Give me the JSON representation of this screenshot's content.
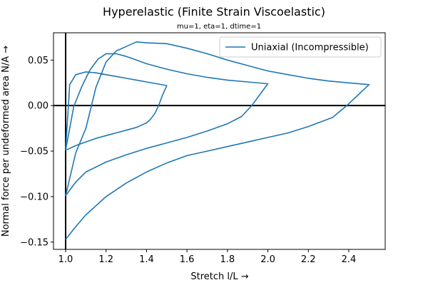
{
  "chart_data": {
    "type": "line",
    "title": "Hyperelastic (Finite Strain Viscoelastic)",
    "subtitle": "mu=1, eta=1, dtime=1",
    "xlabel": "Stretch l/L  →",
    "ylabel": "Normal force per undeformed area N/A  →",
    "xlim": [
      0.94,
      2.58
    ],
    "ylim": [
      -0.158,
      0.08
    ],
    "xticks": [
      1.0,
      1.2,
      1.4,
      1.6,
      1.8,
      2.0,
      2.2,
      2.4
    ],
    "xtick_labels": [
      "1.0",
      "1.2",
      "1.4",
      "1.6",
      "1.8",
      "2.0",
      "2.2",
      "2.4"
    ],
    "yticks": [
      0.05,
      0.0,
      -0.05,
      -0.1,
      -0.15
    ],
    "ytick_labels": [
      "0.05",
      "0.00",
      "−0.05",
      "−0.10",
      "−0.15"
    ],
    "grid": false,
    "reference_lines": {
      "x": 1.0,
      "y": 0.0
    },
    "legend": {
      "location": "upper right"
    },
    "colors": {
      "series": "#1f77b4",
      "axes": "#000000",
      "background": "#ffffff"
    },
    "series": [
      {
        "name": "Uniaxial (Incompressible)",
        "x": [
          1.0,
          1.02,
          1.05,
          1.1,
          1.15,
          1.2,
          1.25,
          1.3,
          1.35,
          1.4,
          1.45,
          1.5,
          1.48,
          1.46,
          1.44,
          1.42,
          1.4,
          1.35,
          1.3,
          1.25,
          1.2,
          1.15,
          1.1,
          1.05,
          1.0,
          1.04,
          1.08,
          1.12,
          1.16,
          1.2,
          1.25,
          1.3,
          1.35,
          1.4,
          1.5,
          1.6,
          1.7,
          1.8,
          1.9,
          2.0,
          1.96,
          1.92,
          1.87,
          1.8,
          1.7,
          1.6,
          1.5,
          1.4,
          1.3,
          1.2,
          1.1,
          1.05,
          1.0,
          1.05,
          1.1,
          1.15,
          1.2,
          1.25,
          1.3,
          1.35,
          1.4,
          1.5,
          1.6,
          1.7,
          1.8,
          1.9,
          2.0,
          2.1,
          2.2,
          2.3,
          2.4,
          2.5,
          2.39,
          2.32,
          2.2,
          2.1,
          2.0,
          1.9,
          1.8,
          1.7,
          1.6,
          1.5,
          1.4,
          1.3,
          1.2,
          1.1,
          1.05,
          1.0
        ],
        "y": [
          -0.049,
          0.023,
          0.034,
          0.037,
          0.036,
          0.034,
          0.032,
          0.03,
          0.028,
          0.026,
          0.024,
          0.022,
          0.012,
          0.0,
          -0.009,
          -0.015,
          -0.019,
          -0.024,
          -0.027,
          -0.03,
          -0.033,
          -0.036,
          -0.04,
          -0.044,
          -0.049,
          -0.001,
          0.021,
          0.039,
          0.051,
          0.057,
          0.057,
          0.054,
          0.05,
          0.046,
          0.04,
          0.035,
          0.031,
          0.028,
          0.026,
          0.024,
          0.012,
          0.0,
          -0.012,
          -0.02,
          -0.028,
          -0.035,
          -0.041,
          -0.047,
          -0.054,
          -0.062,
          -0.073,
          -0.084,
          -0.099,
          -0.052,
          -0.025,
          0.02,
          0.048,
          0.06,
          0.065,
          0.07,
          0.069,
          0.068,
          0.063,
          0.057,
          0.05,
          0.044,
          0.038,
          0.034,
          0.03,
          0.027,
          0.025,
          0.023,
          0.0,
          -0.013,
          -0.023,
          -0.03,
          -0.035,
          -0.04,
          -0.045,
          -0.05,
          -0.055,
          -0.063,
          -0.073,
          -0.085,
          -0.1,
          -0.12,
          -0.133,
          -0.147
        ]
      }
    ]
  }
}
